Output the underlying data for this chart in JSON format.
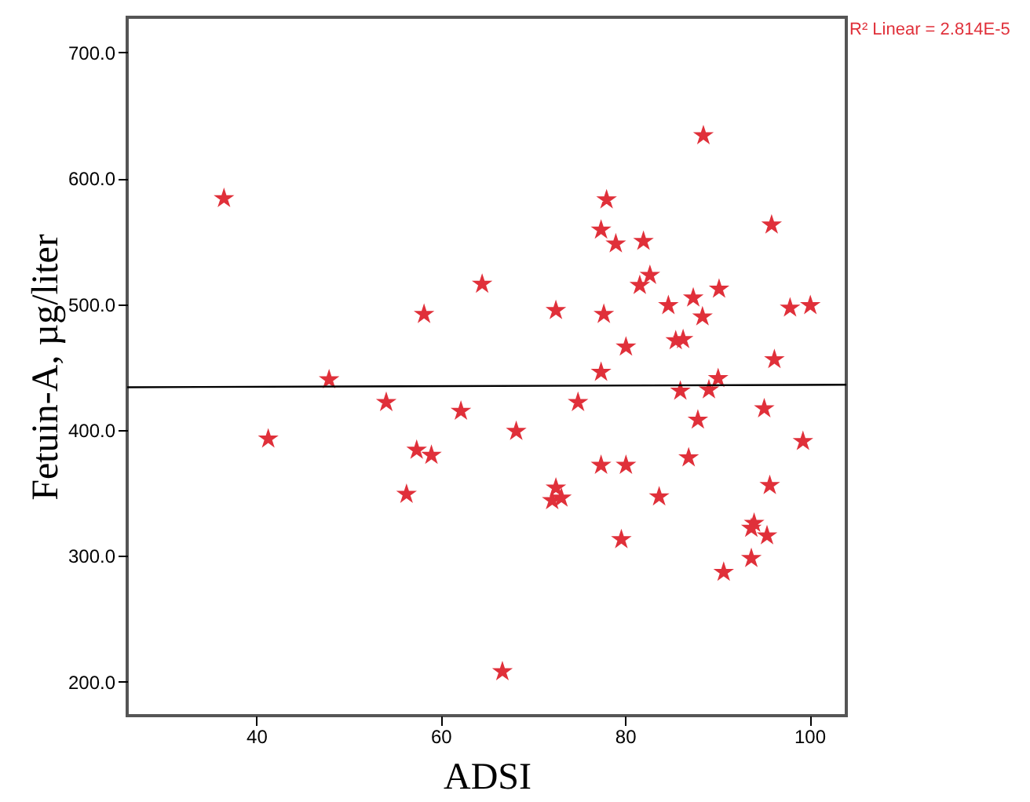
{
  "chart_data": {
    "type": "scatter",
    "xlabel": "ADSI",
    "ylabel": "Fetuin-A, µg/liter",
    "annotations": [
      "R² Linear = 2.814E-5"
    ],
    "xlim": [
      26,
      104
    ],
    "xticks": [
      40,
      60,
      80,
      100
    ],
    "ylim": [
      173,
      728
    ],
    "yticks": [
      {
        "value": 200,
        "label": "200.0"
      },
      {
        "value": 300,
        "label": "300.0"
      },
      {
        "value": 400,
        "label": "400.0"
      },
      {
        "value": 500,
        "label": "500.0"
      },
      {
        "value": 600,
        "label": "600.0"
      },
      {
        "value": 700,
        "label": "700.0"
      }
    ],
    "grid": false,
    "marker": "star",
    "series": [
      {
        "color": "#e0303a",
        "x": [
          36.5,
          58.2,
          64.5,
          88.5,
          78.0,
          77.4,
          79.0,
          82.0,
          95.9,
          72.5,
          77.7,
          81.6,
          82.7,
          84.7,
          87.4,
          90.2,
          88.4,
          97.9,
          100.1,
          80.1,
          85.5,
          86.3,
          96.2,
          47.9,
          41.3,
          54.1,
          57.4,
          59.0,
          56.3,
          62.2,
          68.2,
          66.7,
          77.4,
          90.1,
          86.0,
          89.1,
          74.9,
          95.1,
          87.9,
          99.3,
          77.4,
          80.1,
          86.9,
          95.7,
          72.5,
          72.1,
          73.1,
          83.7,
          94.0,
          93.7,
          95.4,
          93.7,
          79.6,
          90.7
        ],
        "values": [
          584,
          492,
          516,
          634,
          583,
          559,
          548,
          550,
          563,
          495,
          492,
          515,
          523,
          499,
          505,
          512,
          490,
          497,
          499,
          466,
          471,
          472,
          456,
          440,
          393,
          422,
          384,
          380,
          349,
          415,
          399,
          208,
          446,
          441,
          431,
          432,
          422,
          417,
          408,
          391,
          372,
          372,
          378,
          356,
          354,
          344,
          346,
          347,
          326,
          322,
          316,
          298,
          313,
          287
        ]
      },
      {
        "type": "line",
        "color": "#000000",
        "marker": "none",
        "x": [
          26,
          104
        ],
        "values": [
          434,
          436
        ]
      }
    ]
  }
}
